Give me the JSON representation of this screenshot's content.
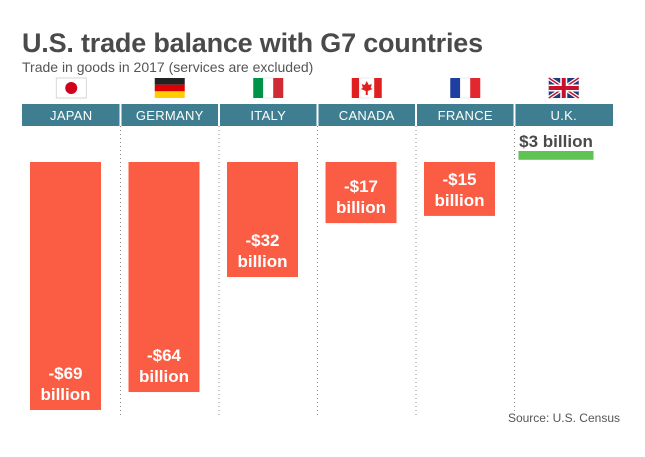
{
  "colors": {
    "negative": "#fa5c44",
    "positive": "#5ec352",
    "band": "#3f7e91",
    "separator": "#8a8a8a"
  },
  "chart_data": {
    "type": "bar",
    "title": "U.S. trade balance with G7 countries",
    "subtitle": "Trade in goods in 2017 (services are excluded)",
    "source": "Source: U.S. Census",
    "unit": "billion USD",
    "categories": [
      "JAPAN",
      "GERMANY",
      "ITALY",
      "CANADA",
      "FRANCE",
      "U.K."
    ],
    "flags": [
      "japan-flag-icon",
      "germany-flag-icon",
      "italy-flag-icon",
      "canada-flag-icon",
      "france-flag-icon",
      "uk-flag-icon"
    ],
    "values": [
      -69,
      -64,
      -32,
      -17,
      -15,
      3
    ],
    "value_labels": [
      [
        "-$69",
        "billion"
      ],
      [
        "-$64",
        "billion"
      ],
      [
        "-$32",
        "billion"
      ],
      [
        "-$17",
        "billion"
      ],
      [
        "-$15",
        "billion"
      ],
      [
        "$3 billion"
      ]
    ]
  }
}
